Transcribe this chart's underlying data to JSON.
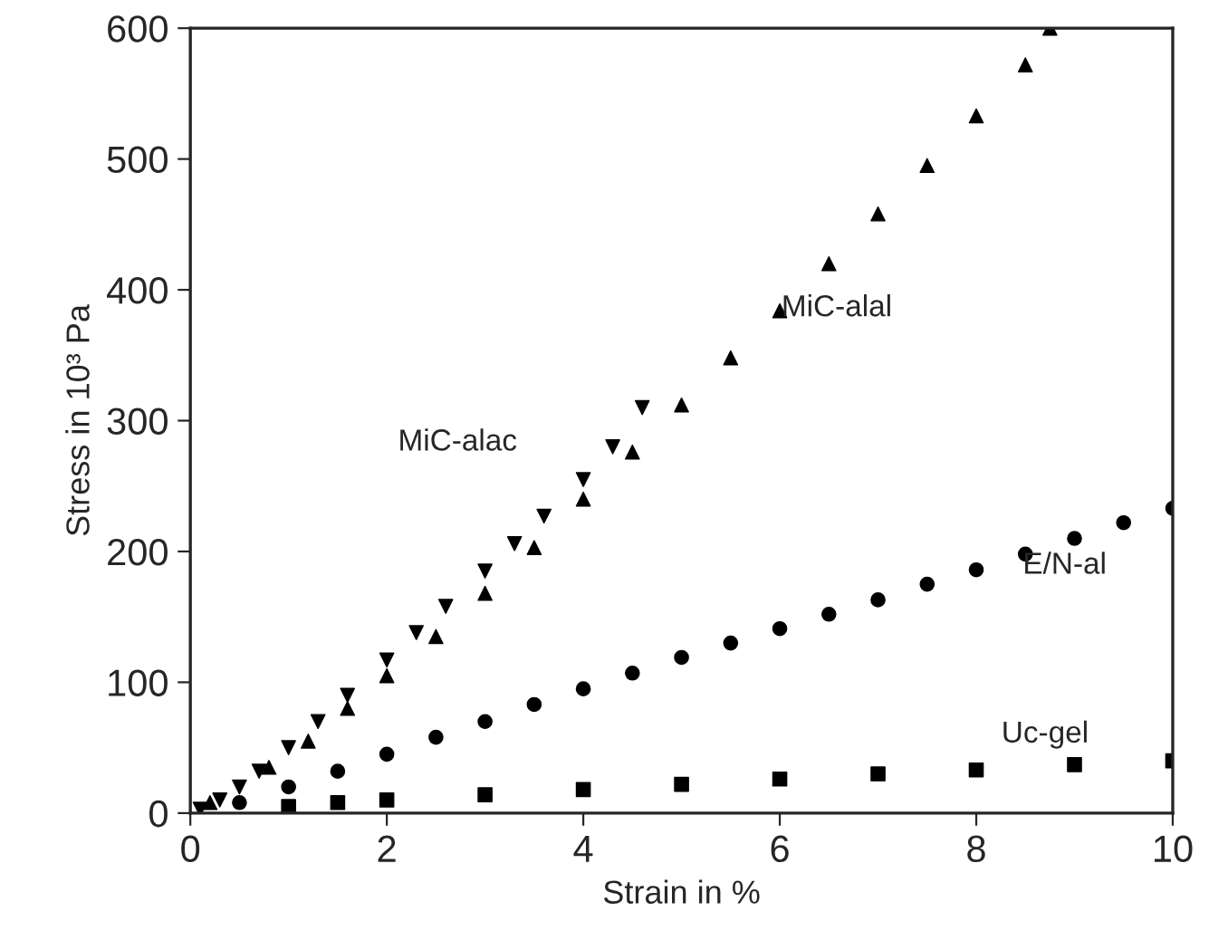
{
  "chart_data": {
    "type": "scatter",
    "xlabel": "Strain in %",
    "ylabel": "Stress in 10³ Pa",
    "xlim": [
      0,
      10
    ],
    "ylim": [
      0,
      600
    ],
    "xticks": [
      0,
      2,
      4,
      6,
      8,
      10
    ],
    "yticks": [
      0,
      100,
      200,
      300,
      400,
      500,
      600
    ],
    "grid": false,
    "legend": false,
    "series": [
      {
        "color": "#000000",
        "marker": "triangle_down",
        "x": [
          0.1,
          0.3,
          0.5,
          0.7,
          1.0,
          1.3,
          1.6,
          2.0,
          2.3,
          2.6,
          3.0,
          3.3,
          3.6,
          4.0,
          4.3,
          4.6
        ],
        "values": [
          3,
          10,
          20,
          32,
          50,
          70,
          90,
          117,
          138,
          158,
          185,
          206,
          227,
          255,
          280,
          310
        ]
      },
      {
        "color": "#000000",
        "marker": "triangle",
        "x": [
          0.2,
          0.8,
          1.2,
          1.6,
          2.0,
          2.5,
          3.0,
          3.5,
          4.0,
          4.5,
          5.0,
          5.5,
          6.0,
          6.5,
          7.0,
          7.5,
          8.0,
          8.5,
          8.75
        ],
        "values": [
          8,
          35,
          55,
          80,
          105,
          135,
          168,
          203,
          240,
          276,
          312,
          348,
          384,
          420,
          458,
          495,
          533,
          572,
          600
        ]
      },
      {
        "color": "#000000",
        "marker": "circle",
        "x": [
          0.5,
          1.0,
          1.5,
          2.0,
          2.5,
          3.0,
          3.5,
          4.0,
          4.5,
          5.0,
          5.5,
          6.0,
          6.5,
          7.0,
          7.5,
          8.0,
          8.5,
          9.0,
          9.5,
          10.0
        ],
        "values": [
          8,
          20,
          32,
          45,
          58,
          70,
          83,
          95,
          107,
          119,
          130,
          141,
          152,
          163,
          175,
          186,
          198,
          210,
          222,
          233
        ]
      },
      {
        "color": "#000000",
        "marker": "square",
        "x": [
          1.0,
          1.5,
          2.0,
          3.0,
          4.0,
          5.0,
          6.0,
          7.0,
          8.0,
          9.0,
          10.0
        ],
        "values": [
          5,
          8,
          10,
          14,
          18,
          22,
          26,
          30,
          33,
          37,
          40
        ]
      }
    ],
    "annotations": [
      "MiC-alac",
      "MiC-alal",
      "E/N-al",
      "Uc-gel"
    ]
  }
}
